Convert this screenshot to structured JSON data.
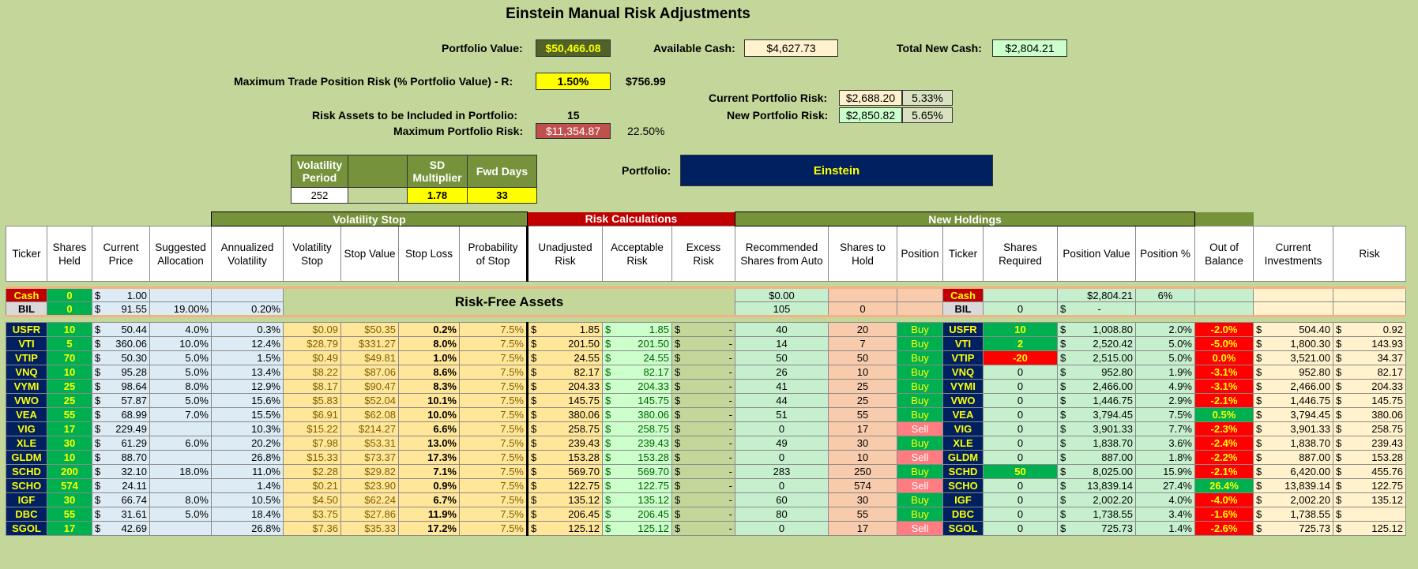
{
  "title": "Einstein Manual Risk Adjustments",
  "summary": {
    "portfolio_value_label": "Portfolio Value:",
    "portfolio_value": "$50,466.08",
    "available_cash_label": "Available Cash:",
    "available_cash": "$4,627.73",
    "total_new_cash_label": "Total New Cash:",
    "total_new_cash": "$2,804.21",
    "max_trade_risk_label": "Maximum Trade Position Risk (% Portfolio Value) - R:",
    "max_trade_risk_pct": "1.50%",
    "max_trade_risk_value": "$756.99",
    "current_risk_label": "Current Portfolio Risk:",
    "current_risk_value": "$2,688.20",
    "current_risk_pct": "5.33%",
    "new_risk_label": "New Portfolio Risk:",
    "new_risk_value": "$2,850.82",
    "new_risk_pct": "5.65%",
    "risk_assets_label": "Risk Assets to be Included in Portfolio:",
    "risk_assets_value": "15",
    "max_portfolio_risk_label": "Maximum Portfolio Risk:",
    "max_portfolio_risk_value": "$11,354.87",
    "max_portfolio_risk_pct": "22.50%",
    "portfolio_label": "Portfolio:",
    "portfolio_name": "Einstein"
  },
  "vol_params": {
    "h1": "Volatility Period",
    "h2": "",
    "h3": "SD Multiplier",
    "h4": "Fwd Days",
    "v1": "252",
    "v2": "",
    "v3": "1.78",
    "v4": "33"
  },
  "groups": {
    "vol_stop": "Volatility Stop",
    "risk_calc": "Risk Calculations",
    "new_holdings": "New Holdings"
  },
  "headers": [
    "Ticker",
    "Shares Held",
    "Current Price",
    "Suggested Allocation",
    "Annualized Volatility",
    "Volatility Stop",
    "Stop Value",
    "Stop Loss",
    "Probability of Stop",
    "Unadjusted Risk",
    "Acceptable Risk",
    "Excess Risk",
    "Recommended Shares from Auto",
    "Shares to Hold",
    "Position",
    "Ticker",
    "Shares Required",
    "Position Value",
    "Position %",
    "Out of Balance",
    "Current Investments",
    "Risk"
  ],
  "risk_free_label": "Risk-Free Assets",
  "cash_row": {
    "ticker": "Cash",
    "held": "0",
    "price": "1.00",
    "alloc": "",
    "vol": "",
    "rec": "$0.00",
    "ticker2": "Cash",
    "posval": "$2,804.21",
    "pospct": "6%"
  },
  "bil_row": {
    "ticker": "BIL",
    "held": "0",
    "price": "91.55",
    "alloc": "19.00%",
    "vol": "0.20%",
    "rec": "105",
    "hold": "0",
    "ticker2": "BIL",
    "req": "0",
    "posval": "-"
  },
  "rows": [
    {
      "t": "USFR",
      "held": "10",
      "price": "50.44",
      "alloc": "4.0%",
      "vol": "0.3%",
      "vstop": "$0.09",
      "sval": "$50.35",
      "sloss": "0.2%",
      "prob": "7.5%",
      "unadj": "1.85",
      "accept": "1.85",
      "excess": "-",
      "rec": "40",
      "hold": "20",
      "pos": "Buy",
      "req": "10",
      "reqc": "green",
      "pval": "1,008.80",
      "ppct": "2.0%",
      "oob": "-2.0%",
      "oobc": "red",
      "cur": "504.40",
      "risk": "0.92"
    },
    {
      "t": "VTI",
      "held": "5",
      "price": "360.06",
      "alloc": "10.0%",
      "vol": "12.4%",
      "vstop": "$28.79",
      "sval": "$331.27",
      "sloss": "8.0%",
      "prob": "7.5%",
      "unadj": "201.50",
      "accept": "201.50",
      "excess": "-",
      "rec": "14",
      "hold": "7",
      "pos": "Buy",
      "req": "2",
      "reqc": "green",
      "pval": "2,520.42",
      "ppct": "5.0%",
      "oob": "-5.0%",
      "oobc": "red",
      "cur": "1,800.30",
      "risk": "143.93"
    },
    {
      "t": "VTIP",
      "held": "70",
      "price": "50.30",
      "alloc": "5.0%",
      "vol": "1.5%",
      "vstop": "$0.49",
      "sval": "$49.81",
      "sloss": "1.0%",
      "prob": "7.5%",
      "unadj": "24.55",
      "accept": "24.55",
      "excess": "-",
      "rec": "50",
      "hold": "50",
      "pos": "Buy",
      "req": "-20",
      "reqc": "red",
      "pval": "2,515.00",
      "ppct": "5.0%",
      "oob": "0.0%",
      "oobc": "red",
      "cur": "3,521.00",
      "risk": "34.37"
    },
    {
      "t": "VNQ",
      "held": "10",
      "price": "95.28",
      "alloc": "5.0%",
      "vol": "13.4%",
      "vstop": "$8.22",
      "sval": "$87.06",
      "sloss": "8.6%",
      "prob": "7.5%",
      "unadj": "82.17",
      "accept": "82.17",
      "excess": "-",
      "rec": "26",
      "hold": "10",
      "pos": "Buy",
      "req": "0",
      "reqc": "",
      "pval": "952.80",
      "ppct": "1.9%",
      "oob": "-3.1%",
      "oobc": "red",
      "cur": "952.80",
      "risk": "82.17"
    },
    {
      "t": "VYMI",
      "held": "25",
      "price": "98.64",
      "alloc": "8.0%",
      "vol": "12.9%",
      "vstop": "$8.17",
      "sval": "$90.47",
      "sloss": "8.3%",
      "prob": "7.5%",
      "unadj": "204.33",
      "accept": "204.33",
      "excess": "-",
      "rec": "41",
      "hold": "25",
      "pos": "Buy",
      "req": "0",
      "reqc": "",
      "pval": "2,466.00",
      "ppct": "4.9%",
      "oob": "-3.1%",
      "oobc": "red",
      "cur": "2,466.00",
      "risk": "204.33"
    },
    {
      "t": "VWO",
      "held": "25",
      "price": "57.87",
      "alloc": "5.0%",
      "vol": "15.6%",
      "vstop": "$5.83",
      "sval": "$52.04",
      "sloss": "10.1%",
      "prob": "7.5%",
      "unadj": "145.75",
      "accept": "145.75",
      "excess": "-",
      "rec": "44",
      "hold": "25",
      "pos": "Buy",
      "req": "0",
      "reqc": "",
      "pval": "1,446.75",
      "ppct": "2.9%",
      "oob": "-2.1%",
      "oobc": "red",
      "cur": "1,446.75",
      "risk": "145.75"
    },
    {
      "t": "VEA",
      "held": "55",
      "price": "68.99",
      "alloc": "7.0%",
      "vol": "15.5%",
      "vstop": "$6.91",
      "sval": "$62.08",
      "sloss": "10.0%",
      "prob": "7.5%",
      "unadj": "380.06",
      "accept": "380.06",
      "excess": "-",
      "rec": "51",
      "hold": "55",
      "pos": "Buy",
      "req": "0",
      "reqc": "",
      "pval": "3,794.45",
      "ppct": "7.5%",
      "oob": "0.5%",
      "oobc": "green",
      "cur": "3,794.45",
      "risk": "380.06"
    },
    {
      "t": "VIG",
      "held": "17",
      "price": "229.49",
      "alloc": "",
      "vol": "10.3%",
      "vstop": "$15.22",
      "sval": "$214.27",
      "sloss": "6.6%",
      "prob": "7.5%",
      "unadj": "258.75",
      "accept": "258.75",
      "excess": "-",
      "rec": "0",
      "hold": "17",
      "pos": "Sell",
      "req": "0",
      "reqc": "",
      "pval": "3,901.33",
      "ppct": "7.7%",
      "oob": "-2.3%",
      "oobc": "red",
      "cur": "3,901.33",
      "risk": "258.75"
    },
    {
      "t": "XLE",
      "held": "30",
      "price": "61.29",
      "alloc": "6.0%",
      "vol": "20.2%",
      "vstop": "$7.98",
      "sval": "$53.31",
      "sloss": "13.0%",
      "prob": "7.5%",
      "unadj": "239.43",
      "accept": "239.43",
      "excess": "-",
      "rec": "49",
      "hold": "30",
      "pos": "Buy",
      "req": "0",
      "reqc": "",
      "pval": "1,838.70",
      "ppct": "3.6%",
      "oob": "-2.4%",
      "oobc": "red",
      "cur": "1,838.70",
      "risk": "239.43"
    },
    {
      "t": "GLDM",
      "held": "10",
      "price": "88.70",
      "alloc": "",
      "vol": "26.8%",
      "vstop": "$15.33",
      "sval": "$73.37",
      "sloss": "17.3%",
      "prob": "7.5%",
      "unadj": "153.28",
      "accept": "153.28",
      "excess": "-",
      "rec": "0",
      "hold": "10",
      "pos": "Sell",
      "req": "0",
      "reqc": "",
      "pval": "887.00",
      "ppct": "1.8%",
      "oob": "-2.2%",
      "oobc": "red",
      "cur": "887.00",
      "risk": "153.28"
    },
    {
      "t": "SCHD",
      "held": "200",
      "price": "32.10",
      "alloc": "18.0%",
      "vol": "11.0%",
      "vstop": "$2.28",
      "sval": "$29.82",
      "sloss": "7.1%",
      "prob": "7.5%",
      "unadj": "569.70",
      "accept": "569.70",
      "excess": "-",
      "rec": "283",
      "hold": "250",
      "pos": "Buy",
      "req": "50",
      "reqc": "green",
      "pval": "8,025.00",
      "ppct": "15.9%",
      "oob": "-2.1%",
      "oobc": "red",
      "cur": "6,420.00",
      "risk": "455.76"
    },
    {
      "t": "SCHO",
      "held": "574",
      "price": "24.11",
      "alloc": "",
      "vol": "1.4%",
      "vstop": "$0.21",
      "sval": "$23.90",
      "sloss": "0.9%",
      "prob": "7.5%",
      "unadj": "122.75",
      "accept": "122.75",
      "excess": "-",
      "rec": "0",
      "hold": "574",
      "pos": "Sell",
      "req": "0",
      "reqc": "",
      "pval": "13,839.14",
      "ppct": "27.4%",
      "oob": "26.4%",
      "oobc": "green",
      "cur": "13,839.14",
      "risk": "122.75"
    },
    {
      "t": "IGF",
      "held": "30",
      "price": "66.74",
      "alloc": "8.0%",
      "vol": "10.5%",
      "vstop": "$4.50",
      "sval": "$62.24",
      "sloss": "6.7%",
      "prob": "7.5%",
      "unadj": "135.12",
      "accept": "135.12",
      "excess": "-",
      "rec": "60",
      "hold": "30",
      "pos": "Buy",
      "req": "0",
      "reqc": "",
      "pval": "2,002.20",
      "ppct": "4.0%",
      "oob": "-4.0%",
      "oobc": "red",
      "cur": "2,002.20",
      "risk": "135.12"
    },
    {
      "t": "DBC",
      "held": "55",
      "price": "31.61",
      "alloc": "5.0%",
      "vol": "18.4%",
      "vstop": "$3.75",
      "sval": "$27.86",
      "sloss": "11.9%",
      "prob": "7.5%",
      "unadj": "206.45",
      "accept": "206.45",
      "excess": "-",
      "rec": "80",
      "hold": "55",
      "pos": "Buy",
      "req": "0",
      "reqc": "",
      "pval": "1,738.55",
      "ppct": "3.4%",
      "oob": "-1.6%",
      "oobc": "red",
      "cur": "1,738.55",
      "risk": ""
    },
    {
      "t": "SGOL",
      "held": "17",
      "price": "42.69",
      "alloc": "",
      "vol": "26.8%",
      "vstop": "$7.36",
      "sval": "$35.33",
      "sloss": "17.2%",
      "prob": "7.5%",
      "unadj": "125.12",
      "accept": "125.12",
      "excess": "-",
      "rec": "0",
      "hold": "17",
      "pos": "Sell",
      "req": "0",
      "reqc": "",
      "pval": "725.73",
      "ppct": "1.4%",
      "oob": "-2.6%",
      "oobc": "red",
      "cur": "725.73",
      "risk": "125.12"
    }
  ]
}
